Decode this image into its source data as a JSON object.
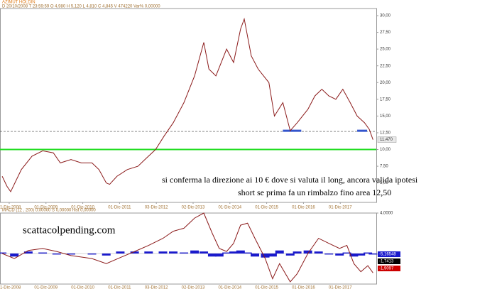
{
  "header": {
    "symbol": "AZIMUT HOLDIN",
    "info": "D 20/10/2008  T 23:59:59  O 4,980  H 5,120  L 4,810  C 4,845  V 474220  Var% 0,00000"
  },
  "watermark": "scattacolpending.com",
  "chart_data": [
    {
      "type": "line",
      "color": "#8b1a1a",
      "annotations": [
        "si conferma la direzione ai 10 € dove si valuta il long, ancora valida ipotesi",
        "short  se prima fa un rimbalzo fino area 12,50"
      ],
      "x": [
        2008.73,
        2008.86,
        2008.96,
        2009.25,
        2009.54,
        2009.83,
        2010.12,
        2010.31,
        2010.6,
        2010.88,
        2011.17,
        2011.36,
        2011.56,
        2011.65,
        2011.85,
        2012.13,
        2012.42,
        2012.61,
        2012.9,
        2013.13,
        2013.38,
        2013.67,
        2013.96,
        2014.21,
        2014.35,
        2014.54,
        2014.83,
        2015.02,
        2015.21,
        2015.31,
        2015.5,
        2015.69,
        2015.98,
        2016.13,
        2016.36,
        2016.56,
        2016.75,
        2017.04,
        2017.23,
        2017.42,
        2017.61,
        2017.8,
        2017.99,
        2018.19,
        2018.38,
        2018.58,
        2018.71,
        2018.81
      ],
      "values": [
        6.0,
        4.5,
        3.7,
        7,
        9,
        9.8,
        9.5,
        8,
        8.5,
        8,
        8,
        7,
        5,
        4.8,
        6,
        7,
        7.5,
        8.5,
        10,
        12,
        14,
        17,
        21,
        26,
        22,
        21,
        25,
        23,
        28,
        29.5,
        24,
        22,
        20,
        15,
        17,
        12.8,
        14,
        16,
        18,
        19,
        18,
        17.5,
        19,
        17,
        15,
        14,
        13,
        11.47
      ],
      "xlim": [
        2008.67,
        2018.9
      ],
      "ylim": [
        2.1,
        31.06
      ],
      "yticks": [
        {
          "value": 5,
          "label": "5,00"
        },
        {
          "value": 7.5,
          "label": "7,50"
        },
        {
          "value": 10,
          "label": "10,00"
        },
        {
          "value": 12.5,
          "label": "12,50"
        },
        {
          "value": 15,
          "label": "15,00"
        },
        {
          "value": 17.5,
          "label": "17,50"
        },
        {
          "value": 20,
          "label": "20,00"
        },
        {
          "value": 22.5,
          "label": "22,50"
        },
        {
          "value": 25,
          "label": "25,00"
        },
        {
          "value": 27.5,
          "label": "27,50"
        },
        {
          "value": 30,
          "label": "30,00"
        }
      ],
      "xticks": [
        {
          "value": 2008.92,
          "label": "01-Dic-2008"
        },
        {
          "value": 2009.92,
          "label": "01-Dic-2009"
        },
        {
          "value": 2010.92,
          "label": "01-Dic-2010"
        },
        {
          "value": 2011.92,
          "label": "01-Dic-2011"
        },
        {
          "value": 2012.92,
          "label": "03-Dic-2012"
        },
        {
          "value": 2013.92,
          "label": "02-Dic-2013"
        },
        {
          "value": 2014.92,
          "label": "01-Dic-2014"
        },
        {
          "value": 2015.92,
          "label": "01-Dic-2015"
        },
        {
          "value": 2016.92,
          "label": "01-Dic-2016"
        },
        {
          "value": 2017.92,
          "label": "01-Dic-2017"
        }
      ],
      "reference_lines": [
        {
          "value": 12.7,
          "color": "#444444"
        },
        {
          "value": 10,
          "color": "#22dd22"
        }
      ],
      "support_segments": [
        {
          "x": [
            2016.36,
            2016.86
          ],
          "value": 12.8,
          "color": "#3355cc"
        },
        {
          "x": [
            2018.38,
            2018.65
          ],
          "value": 12.8,
          "color": "#3355cc"
        }
      ],
      "last_label": {
        "value": 11.47,
        "label": "11,470"
      }
    },
    {
      "type": "macd",
      "title": "MACD  (12 , 200)  0,00000   S  0,00000   hist  0,00000",
      "x": [
        2008.73,
        2009.06,
        2009.44,
        2009.83,
        2010.21,
        2010.6,
        2011.17,
        2011.56,
        2011.94,
        2012.33,
        2012.71,
        2013.1,
        2013.38,
        2013.67,
        2013.96,
        2014.21,
        2014.44,
        2014.63,
        2014.83,
        2015.02,
        2015.21,
        2015.4,
        2015.6,
        2015.88,
        2016.08,
        2016.27,
        2016.56,
        2016.75,
        2017.04,
        2017.33,
        2017.61,
        2017.9,
        2018.1,
        2018.29,
        2018.48,
        2018.67,
        2018.81
      ],
      "series": [
        {
          "name": "MACD",
          "color": "#8b1a1a",
          "values": [
            0,
            -0.5,
            0.3,
            0.5,
            0.2,
            -0.2,
            -0.5,
            -1.0,
            -0.4,
            0.2,
            0.8,
            1.5,
            2.2,
            2.5,
            3.5,
            4.0,
            2.0,
            0.5,
            0.2,
            1.0,
            2.8,
            3.0,
            1.5,
            -0.5,
            -2.5,
            -1.0,
            -2.8,
            -2.0,
            0,
            1.5,
            1.0,
            0.5,
            0.8,
            -1.0,
            -1.8,
            -1.2,
            -1.91
          ]
        },
        {
          "name": "hist",
          "color": "#1a1acc",
          "values": [
            0.1,
            -0.3,
            0.2,
            0.1,
            -0.1,
            -0.1,
            -0.1,
            -0.2,
            0.2,
            0.2,
            0.2,
            0.2,
            0.2,
            0.1,
            0.3,
            0.2,
            -0.3,
            -0.3,
            0.1,
            0.2,
            0.3,
            0.1,
            -0.3,
            -0.4,
            -0.3,
            0.3,
            -0.2,
            0.2,
            0.3,
            0.2,
            -0.1,
            -0.2,
            0.1,
            -0.3,
            -0.2,
            0.1,
            -0.1
          ]
        }
      ],
      "xlim": [
        2008.67,
        2018.9
      ],
      "ylim": [
        -3.02,
        4
      ],
      "yticks": [
        {
          "value": 4,
          "label": "4,0000"
        }
      ],
      "value_boxes": [
        {
          "label": "-5,16548",
          "color": "#1a1acc"
        },
        {
          "label": "-1,7413",
          "color": "#000000"
        },
        {
          "label": "-1,9097",
          "color": "#cc0000"
        }
      ]
    }
  ]
}
